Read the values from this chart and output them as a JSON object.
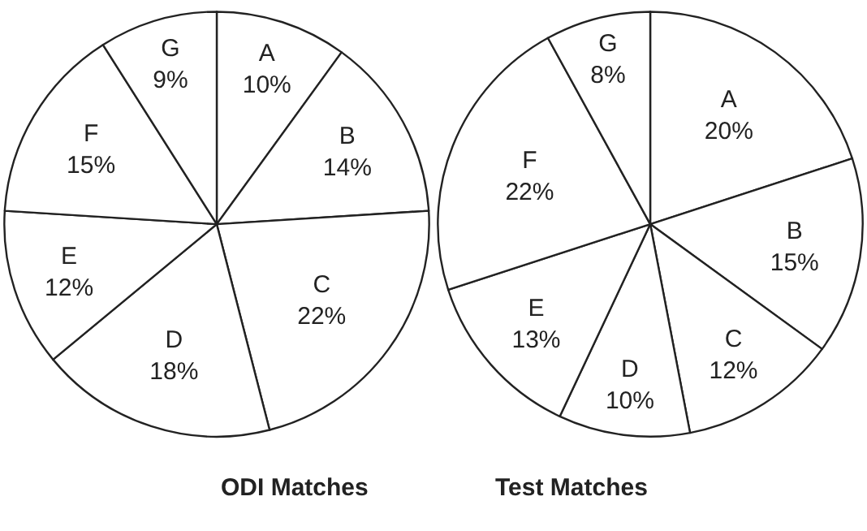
{
  "chart_data": [
    {
      "type": "pie",
      "title": "ODI Matches",
      "categories": [
        "A",
        "B",
        "C",
        "D",
        "E",
        "F",
        "G"
      ],
      "values": [
        10,
        14,
        22,
        18,
        12,
        15,
        9
      ],
      "value_labels": [
        "10%",
        "14%",
        "22%",
        "18%",
        "12%",
        "15%",
        "9%"
      ],
      "colors": [
        "#ffffff",
        "#ffffff",
        "#ffffff",
        "#ffffff",
        "#ffffff",
        "#ffffff",
        "#ffffff"
      ]
    },
    {
      "type": "pie",
      "title": "Test Matches",
      "categories": [
        "A",
        "B",
        "C",
        "D",
        "E",
        "F",
        "G"
      ],
      "values": [
        20,
        15,
        12,
        10,
        13,
        22,
        8
      ],
      "value_labels": [
        "20%",
        "15%",
        "12%",
        "10%",
        "13%",
        "22%",
        "8%"
      ],
      "colors": [
        "#ffffff",
        "#ffffff",
        "#ffffff",
        "#ffffff",
        "#ffffff",
        "#ffffff",
        "#ffffff"
      ]
    }
  ]
}
